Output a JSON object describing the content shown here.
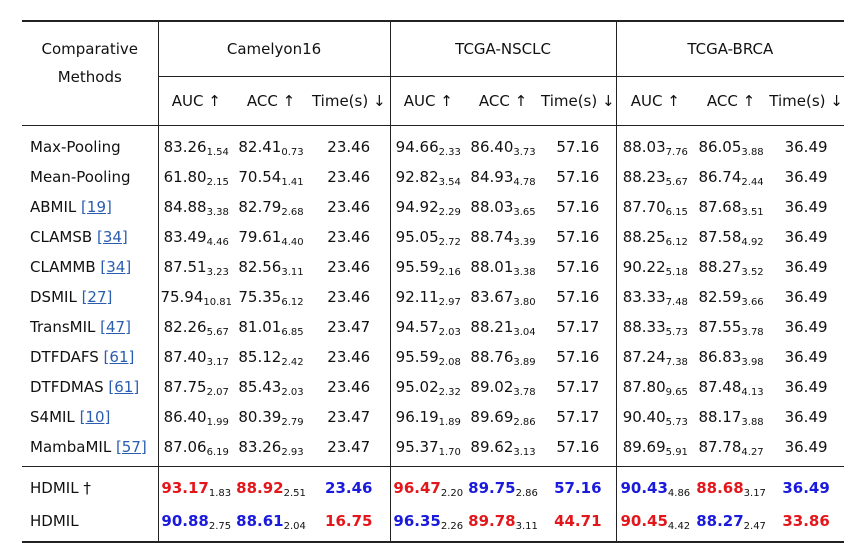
{
  "header": {
    "methods_l1": "Comparative",
    "methods_l2": "Methods",
    "datasets": [
      "Camelyon16",
      "TCGA-NSCLC",
      "TCGA-BRCA"
    ],
    "metrics": [
      "AUC ↑",
      "ACC ↑",
      "Time(s) ↓"
    ]
  },
  "rows": [
    {
      "name": "Max-Pooling",
      "cite": "",
      "cells": [
        [
          "83.26",
          "1.54"
        ],
        [
          "82.41",
          "0.73"
        ],
        [
          "23.46",
          ""
        ],
        [
          "94.66",
          "2.33"
        ],
        [
          "86.40",
          "3.73"
        ],
        [
          "57.16",
          ""
        ],
        [
          "88.03",
          "7.76"
        ],
        [
          "86.05",
          "3.88"
        ],
        [
          "36.49",
          ""
        ]
      ]
    },
    {
      "name": "Mean-Pooling",
      "cite": "",
      "cells": [
        [
          "61.80",
          "2.15"
        ],
        [
          "70.54",
          "1.41"
        ],
        [
          "23.46",
          ""
        ],
        [
          "92.82",
          "3.54"
        ],
        [
          "84.93",
          "4.78"
        ],
        [
          "57.16",
          ""
        ],
        [
          "88.23",
          "5.67"
        ],
        [
          "86.74",
          "2.44"
        ],
        [
          "36.49",
          ""
        ]
      ]
    },
    {
      "name": "ABMIL",
      "cite": "[19]",
      "cells": [
        [
          "84.88",
          "3.38"
        ],
        [
          "82.79",
          "2.68"
        ],
        [
          "23.46",
          ""
        ],
        [
          "94.92",
          "2.29"
        ],
        [
          "88.03",
          "3.65"
        ],
        [
          "57.16",
          ""
        ],
        [
          "87.70",
          "6.15"
        ],
        [
          "87.68",
          "3.51"
        ],
        [
          "36.49",
          ""
        ]
      ]
    },
    {
      "name": "CLAMSB",
      "cite": "[34]",
      "cells": [
        [
          "83.49",
          "4.46"
        ],
        [
          "79.61",
          "4.40"
        ],
        [
          "23.46",
          ""
        ],
        [
          "95.05",
          "2.72"
        ],
        [
          "88.74",
          "3.39"
        ],
        [
          "57.16",
          ""
        ],
        [
          "88.25",
          "6.12"
        ],
        [
          "87.58",
          "4.92"
        ],
        [
          "36.49",
          ""
        ]
      ]
    },
    {
      "name": "CLAMMB",
      "cite": "[34]",
      "cells": [
        [
          "87.51",
          "3.23"
        ],
        [
          "82.56",
          "3.11"
        ],
        [
          "23.46",
          ""
        ],
        [
          "95.59",
          "2.16"
        ],
        [
          "88.01",
          "3.38"
        ],
        [
          "57.16",
          ""
        ],
        [
          "90.22",
          "5.18"
        ],
        [
          "88.27",
          "3.52"
        ],
        [
          "36.49",
          ""
        ]
      ]
    },
    {
      "name": "DSMIL",
      "cite": "[27]",
      "cells": [
        [
          "75.94",
          "10.81"
        ],
        [
          "75.35",
          "6.12"
        ],
        [
          "23.46",
          ""
        ],
        [
          "92.11",
          "2.97"
        ],
        [
          "83.67",
          "3.80"
        ],
        [
          "57.16",
          ""
        ],
        [
          "83.33",
          "7.48"
        ],
        [
          "82.59",
          "3.66"
        ],
        [
          "36.49",
          ""
        ]
      ]
    },
    {
      "name": "TransMIL",
      "cite": "[47]",
      "cells": [
        [
          "82.26",
          "5.67"
        ],
        [
          "81.01",
          "6.85"
        ],
        [
          "23.47",
          ""
        ],
        [
          "94.57",
          "2.03"
        ],
        [
          "88.21",
          "3.04"
        ],
        [
          "57.17",
          ""
        ],
        [
          "88.33",
          "5.73"
        ],
        [
          "87.55",
          "3.78"
        ],
        [
          "36.49",
          ""
        ]
      ]
    },
    {
      "name": "DTFDAFS",
      "cite": "[61]",
      "cells": [
        [
          "87.40",
          "3.17"
        ],
        [
          "85.12",
          "2.42"
        ],
        [
          "23.46",
          ""
        ],
        [
          "95.59",
          "2.08"
        ],
        [
          "88.76",
          "3.89"
        ],
        [
          "57.16",
          ""
        ],
        [
          "87.24",
          "7.38"
        ],
        [
          "86.83",
          "3.98"
        ],
        [
          "36.49",
          ""
        ]
      ]
    },
    {
      "name": "DTFDMAS",
      "cite": "[61]",
      "cells": [
        [
          "87.75",
          "2.07"
        ],
        [
          "85.43",
          "2.03"
        ],
        [
          "23.46",
          ""
        ],
        [
          "95.02",
          "2.32"
        ],
        [
          "89.02",
          "3.78"
        ],
        [
          "57.17",
          ""
        ],
        [
          "87.80",
          "9.65"
        ],
        [
          "87.48",
          "4.13"
        ],
        [
          "36.49",
          ""
        ]
      ]
    },
    {
      "name": "S4MIL",
      "cite": "[10]",
      "cells": [
        [
          "86.40",
          "1.99"
        ],
        [
          "80.39",
          "2.79"
        ],
        [
          "23.47",
          ""
        ],
        [
          "96.19",
          "1.89"
        ],
        [
          "89.69",
          "2.86"
        ],
        [
          "57.17",
          ""
        ],
        [
          "90.40",
          "5.73"
        ],
        [
          "88.17",
          "3.88"
        ],
        [
          "36.49",
          ""
        ]
      ]
    },
    {
      "name": "MambaMIL",
      "cite": "[57]",
      "cells": [
        [
          "87.06",
          "6.19"
        ],
        [
          "83.26",
          "2.93"
        ],
        [
          "23.47",
          ""
        ],
        [
          "95.37",
          "1.70"
        ],
        [
          "89.62",
          "3.13"
        ],
        [
          "57.16",
          ""
        ],
        [
          "89.69",
          "5.91"
        ],
        [
          "87.78",
          "4.27"
        ],
        [
          "36.49",
          ""
        ]
      ]
    }
  ],
  "ours": [
    {
      "name": "HDMIL †",
      "cells": [
        [
          "93.17",
          "1.83",
          "red"
        ],
        [
          "88.92",
          "2.51",
          "red"
        ],
        [
          "23.46",
          "",
          "blue"
        ],
        [
          "96.47",
          "2.20",
          "red"
        ],
        [
          "89.75",
          "2.86",
          "blue"
        ],
        [
          "57.16",
          "",
          "blue"
        ],
        [
          "90.43",
          "4.86",
          "blue"
        ],
        [
          "88.68",
          "3.17",
          "red"
        ],
        [
          "36.49",
          "",
          "blue"
        ]
      ]
    },
    {
      "name": "HDMIL",
      "cells": [
        [
          "90.88",
          "2.75",
          "blue"
        ],
        [
          "88.61",
          "2.04",
          "blue"
        ],
        [
          "16.75",
          "",
          "red"
        ],
        [
          "96.35",
          "2.26",
          "blue"
        ],
        [
          "89.78",
          "3.11",
          "red"
        ],
        [
          "44.71",
          "",
          "red"
        ],
        [
          "90.45",
          "4.42",
          "red"
        ],
        [
          "88.27",
          "2.47",
          "blue"
        ],
        [
          "33.86",
          "",
          "red"
        ]
      ]
    }
  ],
  "colors": {
    "best": "#e3161b",
    "second": "#1a1adc",
    "cite": "#2a5db0"
  }
}
